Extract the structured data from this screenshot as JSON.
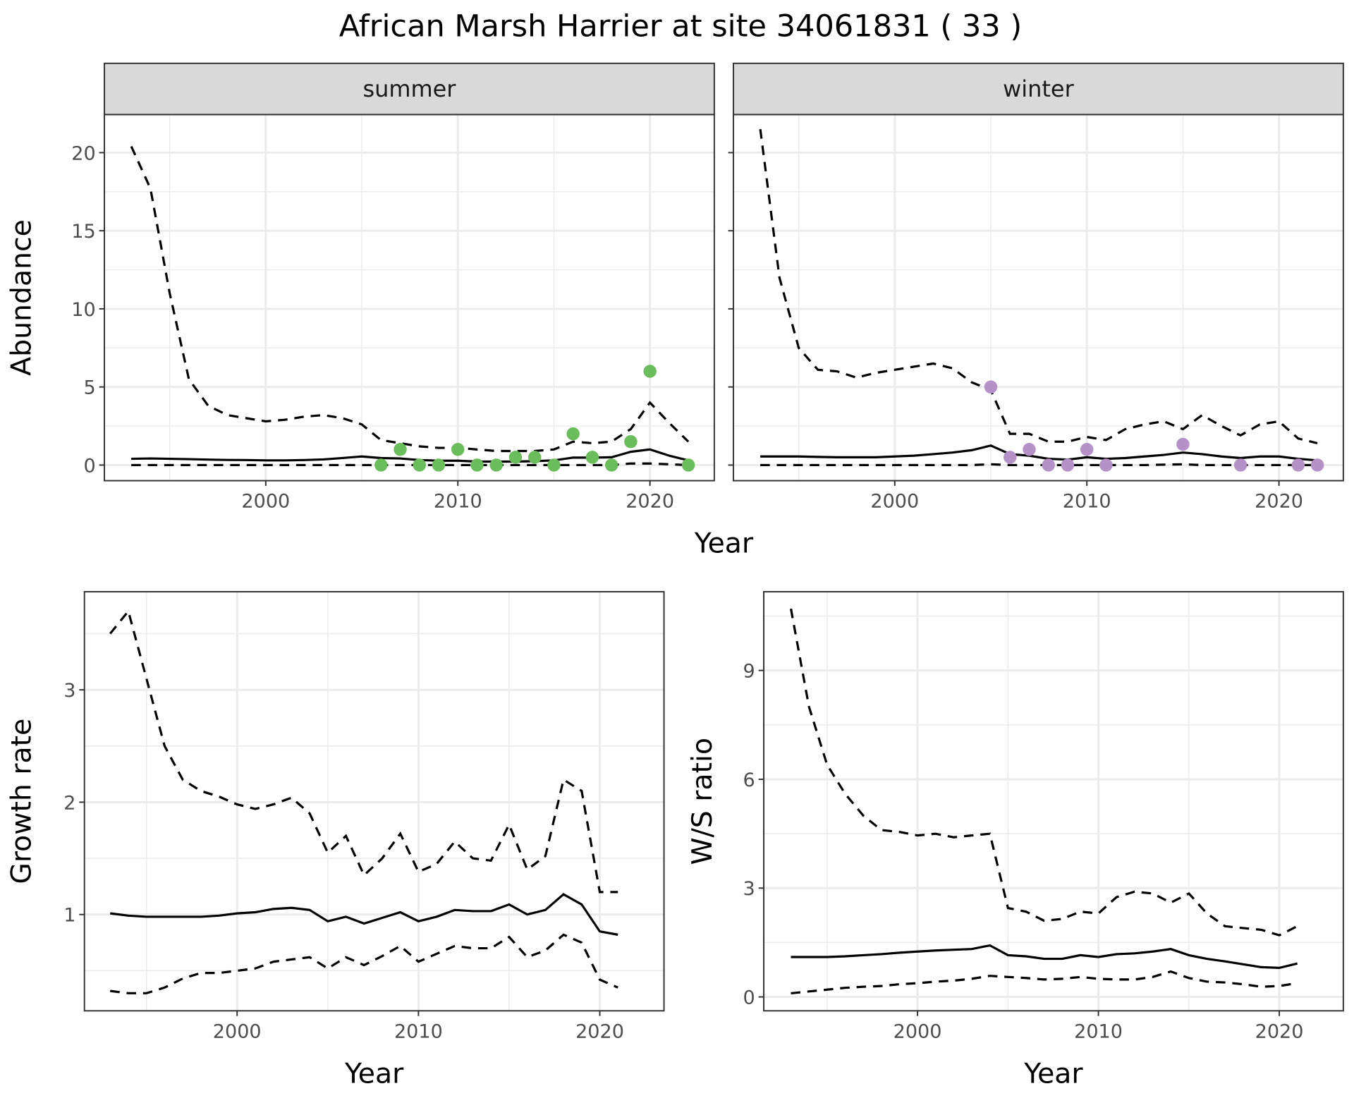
{
  "title": "African Marsh Harrier at site 34061831 ( 33 )",
  "chart_data": [
    {
      "type": "line",
      "panel": "summer",
      "strip_label": "summer",
      "xlabel": "Year",
      "ylabel": "Abundance",
      "xlim": [
        1991.6,
        2023.35
      ],
      "ylim": [
        -1.0,
        22.44
      ],
      "xticks": [
        2000,
        2010,
        2020
      ],
      "yticks": [
        0,
        5,
        10,
        15,
        20
      ],
      "point_color": "#6ABD5A",
      "x": [
        1993,
        1994,
        1995,
        1996,
        1997,
        1998,
        1999,
        2000,
        2001,
        2002,
        2003,
        2004,
        2005,
        2006,
        2007,
        2008,
        2009,
        2010,
        2011,
        2012,
        2013,
        2014,
        2015,
        2016,
        2017,
        2018,
        2019,
        2020,
        2021,
        2022
      ],
      "mean": [
        0.4,
        0.42,
        0.4,
        0.38,
        0.35,
        0.33,
        0.32,
        0.3,
        0.3,
        0.32,
        0.36,
        0.45,
        0.55,
        0.45,
        0.42,
        0.32,
        0.28,
        0.28,
        0.22,
        0.22,
        0.22,
        0.25,
        0.3,
        0.48,
        0.48,
        0.5,
        0.85,
        1.0,
        0.6,
        0.3
      ],
      "upper": [
        20.4,
        17.7,
        11.0,
        5.5,
        3.8,
        3.2,
        3.0,
        2.8,
        2.9,
        3.1,
        3.2,
        3.0,
        2.6,
        1.6,
        1.4,
        1.2,
        1.1,
        1.1,
        1.0,
        0.9,
        0.9,
        0.9,
        1.0,
        1.5,
        1.4,
        1.5,
        2.3,
        4.0,
        2.7,
        1.5
      ],
      "lower": [
        0,
        0,
        0,
        0,
        0,
        0,
        0,
        0,
        0,
        0,
        0,
        0,
        0,
        0,
        0,
        0,
        0,
        0,
        0,
        0,
        0,
        0,
        0,
        0,
        0,
        0,
        0.1,
        0.1,
        0.05,
        0
      ],
      "points": {
        "x": [
          2006,
          2007,
          2008,
          2009,
          2010,
          2011,
          2012,
          2013,
          2014,
          2015,
          2016,
          2017,
          2018,
          2019,
          2020,
          2022
        ],
        "y": [
          0,
          1,
          0,
          0,
          1,
          0,
          0,
          0.5,
          0.5,
          0,
          2,
          0.5,
          0,
          1.5,
          6,
          0
        ]
      }
    },
    {
      "type": "line",
      "panel": "winter",
      "strip_label": "winter",
      "xlabel": "Year",
      "ylabel": "Abundance",
      "xlim": [
        1991.6,
        2023.35
      ],
      "ylim": [
        -1.0,
        22.44
      ],
      "xticks": [
        2000,
        2010,
        2020
      ],
      "yticks": [
        0,
        5,
        10,
        15,
        20
      ],
      "point_color": "#B591C8",
      "x": [
        1993,
        1994,
        1995,
        1996,
        1997,
        1998,
        1999,
        2000,
        2001,
        2002,
        2003,
        2004,
        2005,
        2006,
        2007,
        2008,
        2009,
        2010,
        2011,
        2012,
        2013,
        2014,
        2015,
        2016,
        2017,
        2018,
        2019,
        2020,
        2021,
        2022
      ],
      "mean": [
        0.55,
        0.55,
        0.55,
        0.52,
        0.5,
        0.5,
        0.5,
        0.55,
        0.6,
        0.7,
        0.8,
        0.95,
        1.25,
        0.7,
        0.6,
        0.4,
        0.35,
        0.5,
        0.4,
        0.45,
        0.55,
        0.65,
        0.8,
        0.7,
        0.55,
        0.45,
        0.55,
        0.55,
        0.4,
        0.3
      ],
      "upper": [
        21.5,
        12.0,
        7.5,
        6.1,
        6.0,
        5.6,
        5.9,
        6.1,
        6.3,
        6.5,
        6.2,
        5.3,
        4.8,
        2.0,
        2.0,
        1.5,
        1.5,
        1.8,
        1.6,
        2.3,
        2.6,
        2.8,
        2.3,
        3.2,
        2.5,
        1.9,
        2.6,
        2.8,
        1.7,
        1.4
      ],
      "lower": [
        0,
        0,
        0,
        0,
        0,
        0,
        0,
        0,
        0,
        0,
        0,
        0,
        0.05,
        0,
        0,
        0,
        0,
        0,
        0,
        0,
        0,
        0.03,
        0.05,
        0,
        0,
        0,
        0,
        0,
        0,
        0
      ],
      "points": {
        "x": [
          2005,
          2006,
          2007,
          2008,
          2009,
          2010,
          2011,
          2015,
          2018,
          2021,
          2022
        ],
        "y": [
          5,
          0.5,
          1,
          0,
          0,
          1,
          0,
          1.33,
          0,
          0,
          0
        ]
      }
    },
    {
      "type": "line",
      "panel": "growth",
      "xlabel": "Year",
      "ylabel": "Growth rate",
      "xlim": [
        1991.58,
        2023.54
      ],
      "ylim": [
        0.143,
        3.873
      ],
      "xticks": [
        2000,
        2010,
        2020
      ],
      "yticks": [
        1,
        2,
        3
      ],
      "x": [
        1993,
        1994,
        1995,
        1996,
        1997,
        1998,
        1999,
        2000,
        2001,
        2002,
        2003,
        2004,
        2005,
        2006,
        2007,
        2008,
        2009,
        2010,
        2011,
        2012,
        2013,
        2014,
        2015,
        2016,
        2017,
        2018,
        2019,
        2020,
        2021
      ],
      "mean": [
        1.01,
        0.99,
        0.98,
        0.98,
        0.98,
        0.98,
        0.99,
        1.01,
        1.02,
        1.05,
        1.06,
        1.04,
        0.94,
        0.98,
        0.92,
        0.97,
        1.02,
        0.94,
        0.98,
        1.04,
        1.03,
        1.03,
        1.09,
        1.0,
        1.04,
        1.18,
        1.09,
        0.85,
        0.82
      ],
      "upper": [
        3.5,
        3.7,
        3.1,
        2.5,
        2.2,
        2.1,
        2.05,
        1.98,
        1.94,
        1.98,
        2.04,
        1.9,
        1.55,
        1.7,
        1.35,
        1.5,
        1.72,
        1.38,
        1.45,
        1.65,
        1.5,
        1.48,
        1.8,
        1.4,
        1.52,
        2.2,
        2.1,
        1.2,
        1.2
      ],
      "lower": [
        0.32,
        0.3,
        0.3,
        0.35,
        0.43,
        0.48,
        0.48,
        0.5,
        0.52,
        0.58,
        0.6,
        0.62,
        0.52,
        0.62,
        0.55,
        0.63,
        0.72,
        0.58,
        0.65,
        0.72,
        0.7,
        0.7,
        0.8,
        0.62,
        0.68,
        0.82,
        0.75,
        0.42,
        0.35
      ]
    },
    {
      "type": "line",
      "panel": "ratio",
      "xlabel": "Year",
      "ylabel": "W/S ratio",
      "xlim": [
        1991.5,
        2023.54
      ],
      "ylim": [
        -0.383,
        11.17
      ],
      "xticks": [
        2000,
        2010,
        2020
      ],
      "yticks": [
        0,
        3,
        6,
        9
      ],
      "x": [
        1993,
        1994,
        1995,
        1996,
        1997,
        1998,
        1999,
        2000,
        2001,
        2002,
        2003,
        2004,
        2005,
        2006,
        2007,
        2008,
        2009,
        2010,
        2011,
        2012,
        2013,
        2014,
        2015,
        2016,
        2017,
        2018,
        2019,
        2020,
        2021
      ],
      "mean": [
        1.1,
        1.1,
        1.1,
        1.12,
        1.15,
        1.18,
        1.22,
        1.25,
        1.28,
        1.3,
        1.32,
        1.42,
        1.15,
        1.12,
        1.05,
        1.05,
        1.15,
        1.1,
        1.18,
        1.2,
        1.25,
        1.32,
        1.15,
        1.05,
        0.98,
        0.9,
        0.82,
        0.8,
        0.92
      ],
      "upper": [
        10.7,
        8.0,
        6.4,
        5.6,
        5.0,
        4.6,
        4.55,
        4.45,
        4.5,
        4.4,
        4.45,
        4.5,
        2.45,
        2.35,
        2.1,
        2.15,
        2.35,
        2.3,
        2.75,
        2.9,
        2.85,
        2.6,
        2.85,
        2.3,
        1.95,
        1.9,
        1.85,
        1.7,
        1.95
      ],
      "lower": [
        0.1,
        0.15,
        0.2,
        0.25,
        0.28,
        0.3,
        0.35,
        0.38,
        0.42,
        0.45,
        0.5,
        0.58,
        0.55,
        0.52,
        0.48,
        0.5,
        0.55,
        0.5,
        0.48,
        0.48,
        0.55,
        0.7,
        0.52,
        0.42,
        0.4,
        0.35,
        0.28,
        0.3,
        0.38
      ]
    }
  ]
}
